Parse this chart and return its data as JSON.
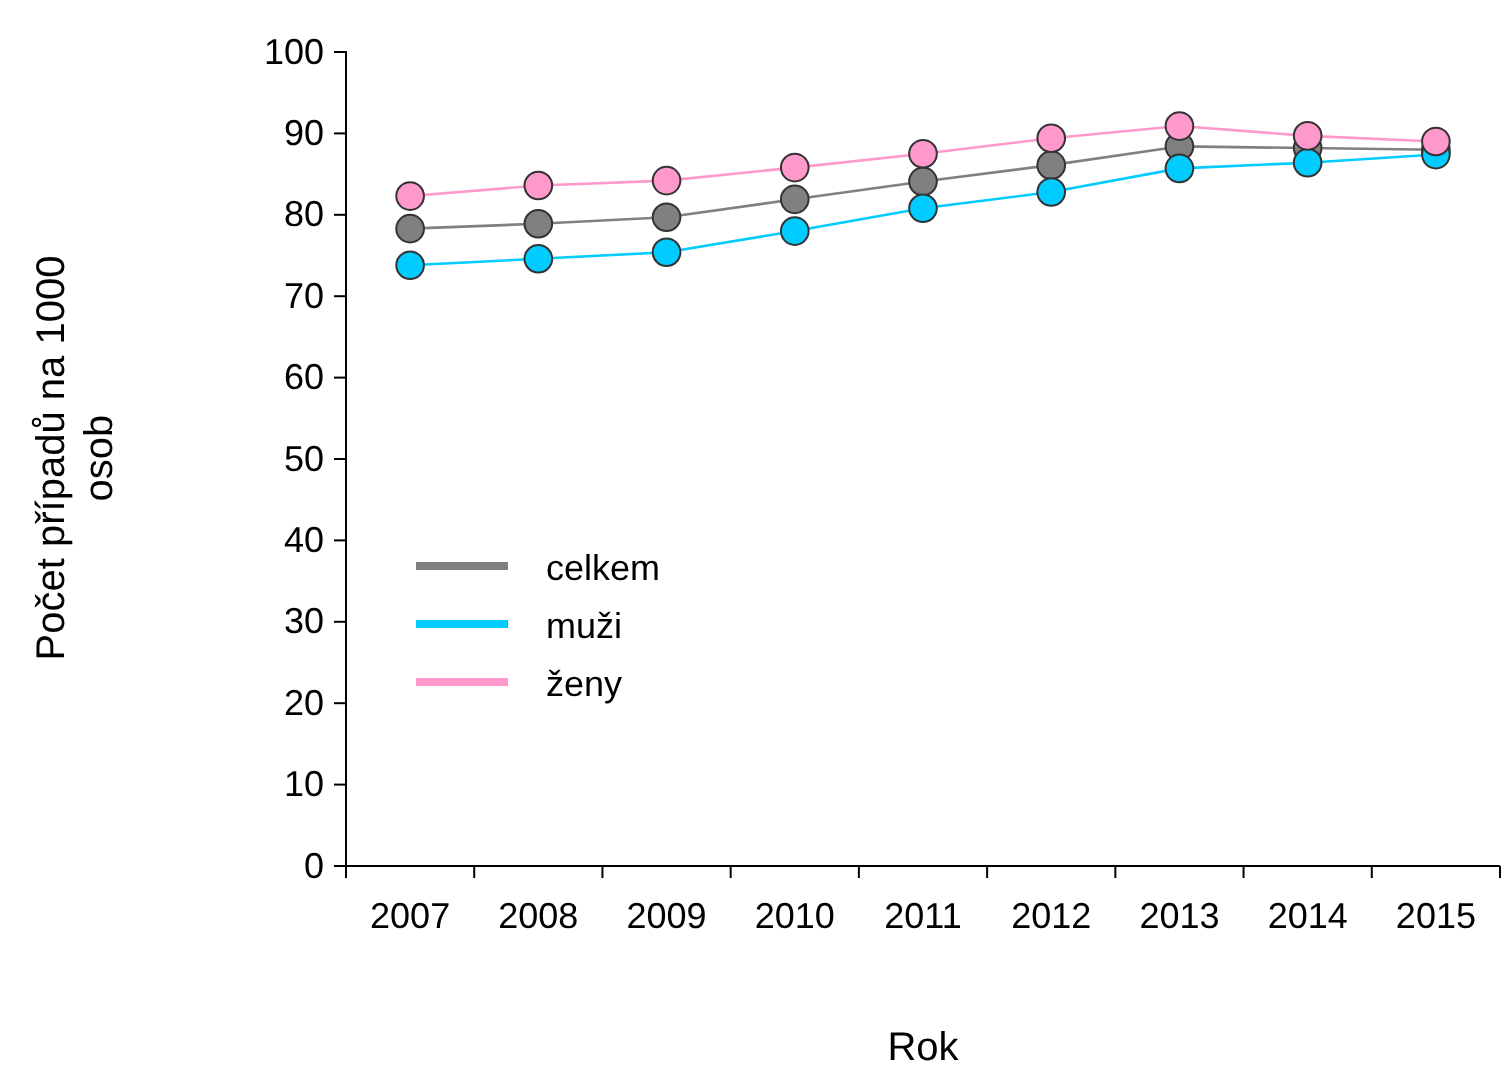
{
  "chart_data": {
    "type": "line",
    "xlabel": "Rok",
    "ylabel": "Počet případů na 1000 osob",
    "categories": [
      "2007",
      "2008",
      "2009",
      "2010",
      "2011",
      "2012",
      "2013",
      "2014",
      "2015"
    ],
    "series": [
      {
        "name": "celkem",
        "color": "#808080",
        "values": [
          78.3,
          78.9,
          79.7,
          81.9,
          84.1,
          86.1,
          88.4,
          88.2,
          88.0
        ]
      },
      {
        "name": "muži",
        "color": "#00ccff",
        "values": [
          73.8,
          74.6,
          75.4,
          78.0,
          80.8,
          82.8,
          85.7,
          86.4,
          87.4
        ]
      },
      {
        "name": "ženy",
        "color": "#ff99cc",
        "values": [
          82.3,
          83.6,
          84.2,
          85.8,
          87.5,
          89.4,
          90.9,
          89.7,
          89.0
        ]
      }
    ],
    "ylim": [
      0,
      100
    ],
    "yticks": [
      0,
      10,
      20,
      30,
      40,
      50,
      60,
      70,
      80,
      90,
      100
    ],
    "marker": "circle",
    "legend": "left",
    "grid": false
  }
}
